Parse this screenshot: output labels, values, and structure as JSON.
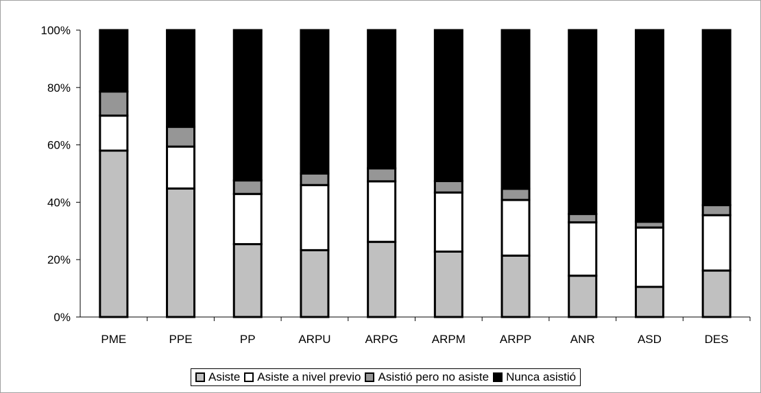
{
  "chart_data": {
    "type": "bar",
    "stacked": true,
    "percent": true,
    "categories": [
      "PME",
      "PPE",
      "PP",
      "ARPU",
      "ARPG",
      "ARPM",
      "ARPP",
      "ANR",
      "ASD",
      "DES"
    ],
    "series": [
      {
        "name": "Asiste",
        "color": "#c0c0c0",
        "values": [
          58,
          44.8,
          25.4,
          23.3,
          26.2,
          22.8,
          21.4,
          14.4,
          10.5,
          16.2
        ]
      },
      {
        "name": "Asiste a nivel previo",
        "color": "#ffffff",
        "values": [
          12.2,
          14.6,
          17.5,
          22.7,
          21.1,
          20.6,
          19.4,
          18.6,
          20.7,
          19.3
        ]
      },
      {
        "name": "Asistió pero no asiste",
        "color": "#969696",
        "values": [
          8.4,
          6.9,
          4.7,
          4,
          4.5,
          4,
          3.9,
          2.9,
          2,
          3.5
        ]
      },
      {
        "name": "Nunca asistió",
        "color": "#000000",
        "values": [
          21.4,
          33.7,
          52.4,
          50,
          48.2,
          52.6,
          55.3,
          64.1,
          66.8,
          61
        ]
      }
    ],
    "y_ticks": [
      "0%",
      "20%",
      "40%",
      "60%",
      "80%",
      "100%"
    ],
    "ylim": [
      0,
      100
    ],
    "grid": false,
    "legend_position": "bottom"
  }
}
